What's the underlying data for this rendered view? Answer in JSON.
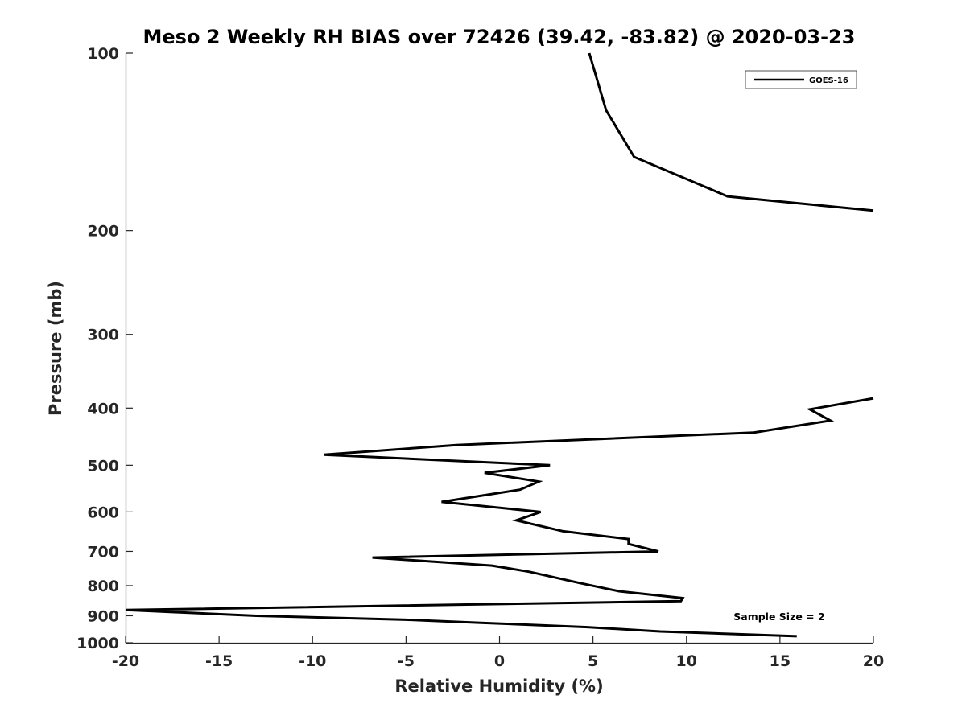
{
  "chart_data": {
    "type": "line",
    "title": "Meso 2 Weekly RH BIAS over 72426 (39.42, -83.82) @ 2020-03-23",
    "xlabel": "Relative Humidity (%)",
    "ylabel": "Pressure (mb)",
    "xlim": [
      -20,
      20
    ],
    "ylim": [
      100,
      1000
    ],
    "y_scale": "log",
    "y_reversed": true,
    "x_ticks": [
      -20,
      -15,
      -10,
      -5,
      0,
      5,
      10,
      15,
      20
    ],
    "y_ticks": [
      100,
      200,
      300,
      400,
      500,
      600,
      700,
      800,
      900,
      1000
    ],
    "grid": false,
    "legend_position": "top-right",
    "series": [
      {
        "name": "GOES-16",
        "color": "#000000",
        "x": [
          4.8,
          5.7,
          7.2,
          12.2,
          20.0
        ],
        "y": [
          100,
          125,
          150,
          175,
          185
        ]
      },
      {
        "name": "GOES-16",
        "color": "#000000",
        "x": [
          20.0,
          16.6,
          17.7,
          13.6,
          -2.3,
          -9.4,
          2.7,
          -0.8,
          2.1,
          1.1,
          -3.1,
          2.2,
          0.9,
          3.4,
          6.9,
          6.9,
          8.5,
          -6.8,
          -0.4,
          1.6,
          4.3,
          6.4,
          9.8,
          9.7,
          -20.0,
          -13.0,
          -5.0,
          -1.0,
          4.7,
          8.6,
          15.9
        ],
        "y": [
          385,
          402,
          420,
          440,
          462,
          480,
          500,
          515,
          533,
          550,
          577,
          600,
          620,
          647,
          667,
          680,
          700,
          717,
          740,
          758,
          792,
          818,
          840,
          850,
          880,
          900,
          914,
          925,
          941,
          957,
          975
        ]
      }
    ],
    "annotations": [
      "Sample Size = 2"
    ]
  }
}
